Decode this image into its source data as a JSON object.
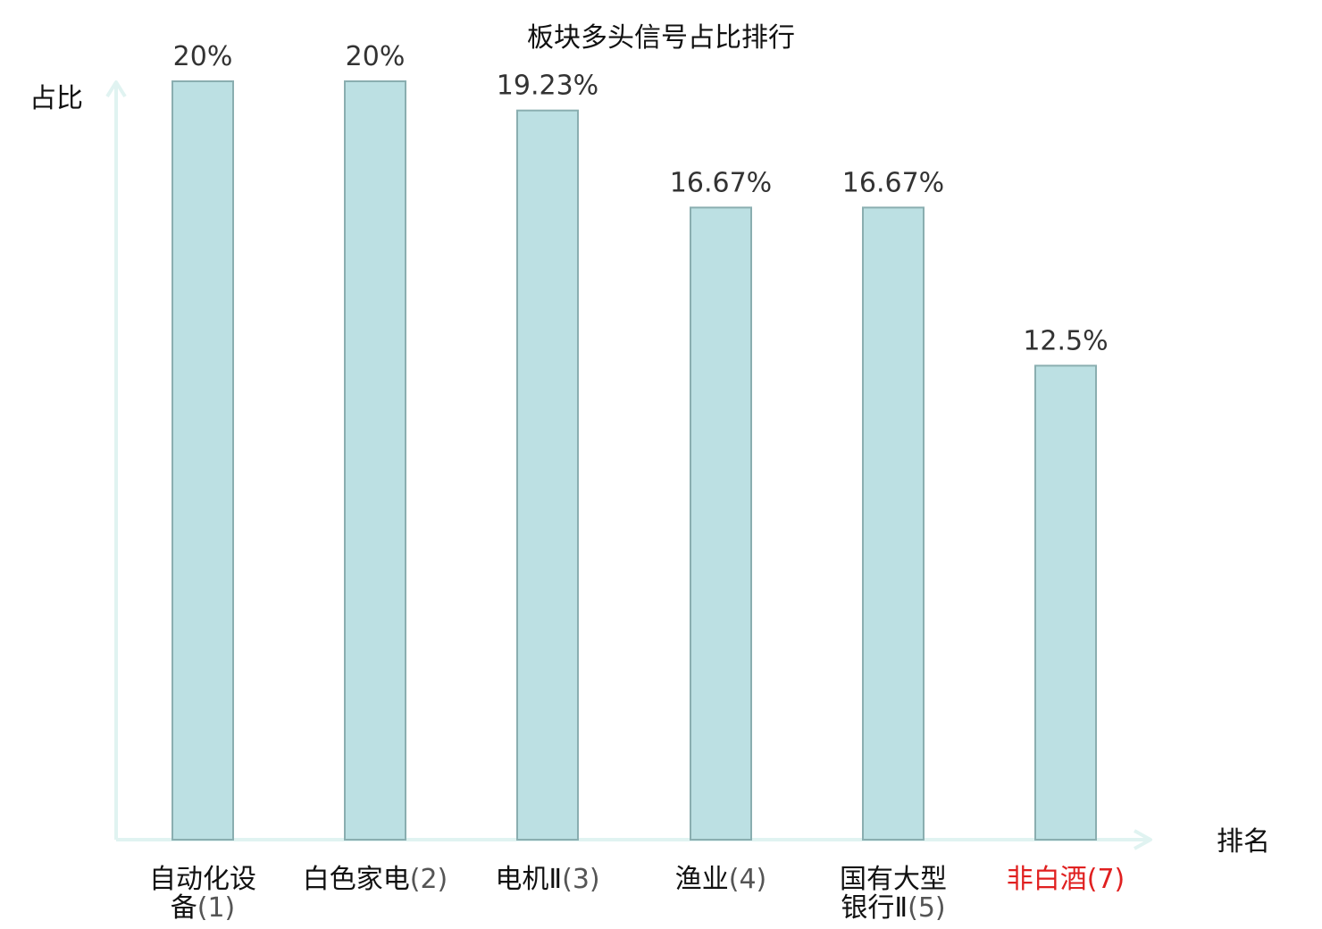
{
  "chart_data": {
    "type": "bar",
    "title": "板块多头信号占比排行",
    "ylabel": "占比",
    "xlabel": "排名",
    "ylim": [
      0,
      20
    ],
    "categories": [
      {
        "lines": [
          "自动化设",
          "备"
        ],
        "rank": "(1)",
        "highlight": false
      },
      {
        "lines": [
          "白色家电"
        ],
        "rank": "(2)",
        "highlight": false
      },
      {
        "lines": [
          "电机Ⅱ"
        ],
        "rank": "(3)",
        "highlight": false
      },
      {
        "lines": [
          "渔业"
        ],
        "rank": "(4)",
        "highlight": false
      },
      {
        "lines": [
          "国有大型",
          "银行Ⅱ"
        ],
        "rank": "(5)",
        "highlight": false
      },
      {
        "lines": [
          "非白酒"
        ],
        "rank": "(7)",
        "highlight": true
      }
    ],
    "values": [
      20,
      20,
      19.23,
      16.67,
      16.67,
      12.5
    ],
    "value_labels": [
      "20%",
      "20%",
      "19.23%",
      "16.67%",
      "16.67%",
      "12.5%"
    ],
    "grid": false,
    "legend": "none",
    "colors": {
      "bar_fill": "#bce0e3",
      "bar_stroke": "#8aaeb0",
      "axis": "#e0f3f1",
      "highlight_text": "#e02020",
      "normal_text": "#111111"
    }
  }
}
